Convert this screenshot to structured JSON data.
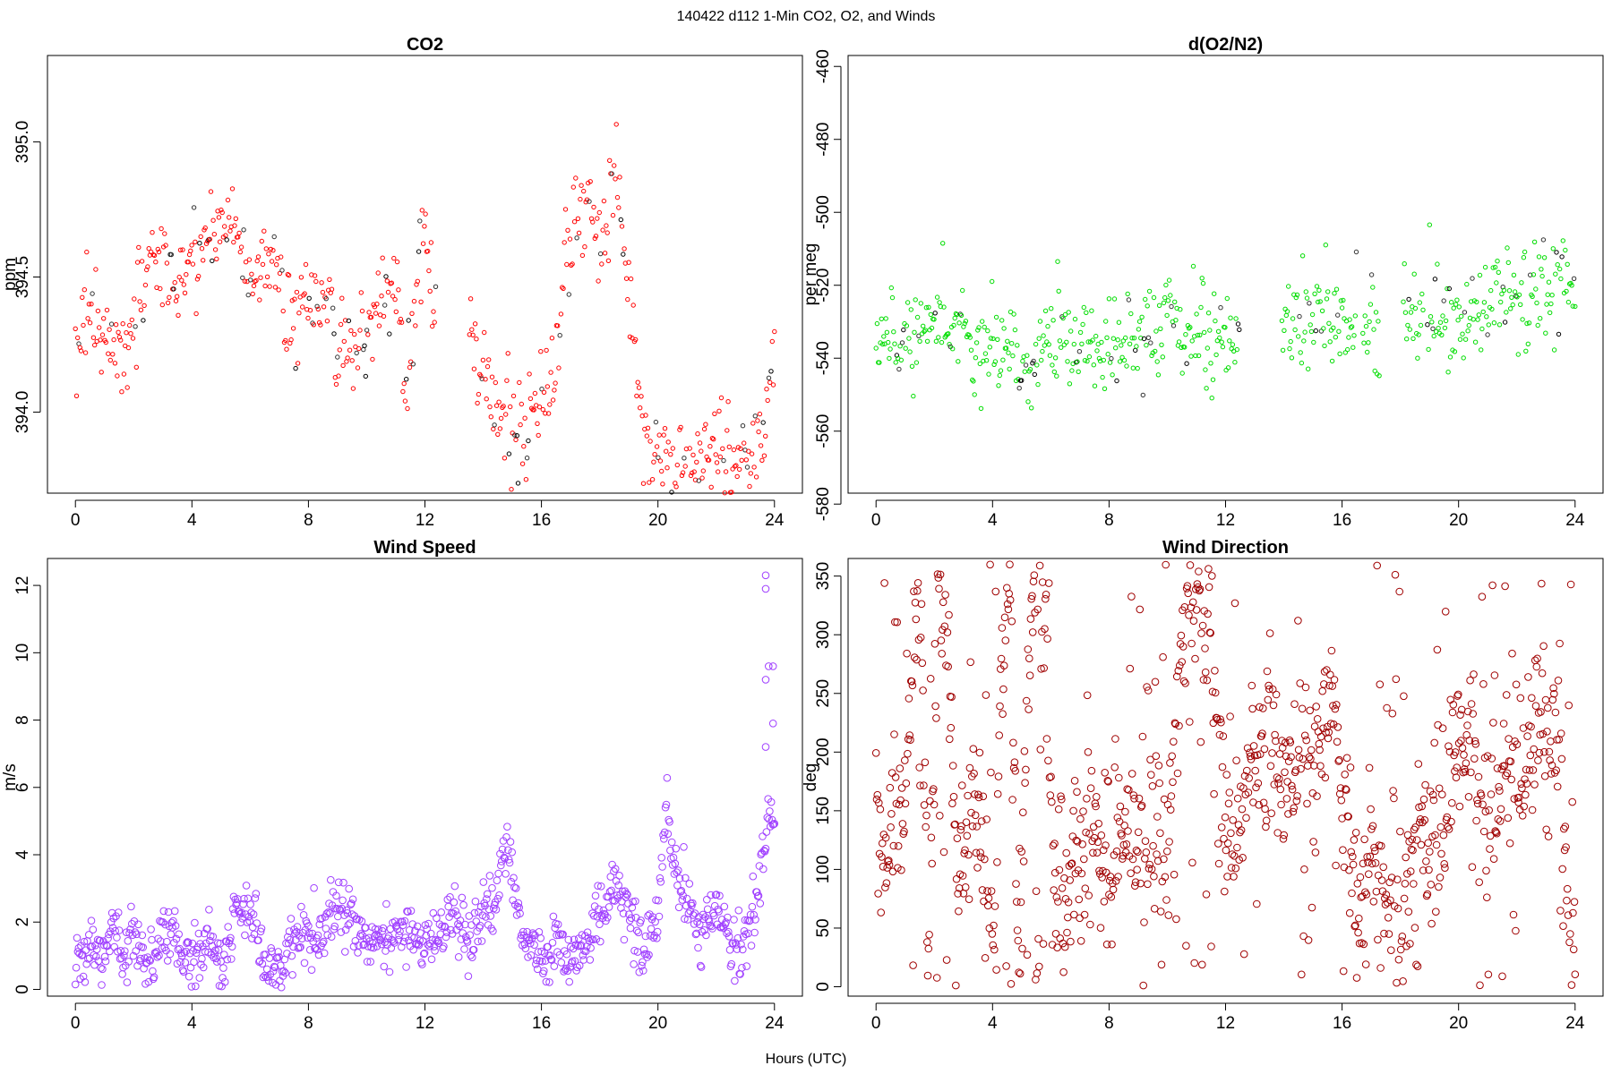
{
  "figure": {
    "title": "140422   d112   1-Min CO2, O2, and Winds",
    "xlabel": "Hours (UTC)"
  },
  "chart_data": [
    {
      "type": "scatter",
      "title": "CO2",
      "ylabel": "ppm",
      "color": "#ff0000",
      "marker_radius": 2.2,
      "xlim": [
        0,
        24
      ],
      "ylim": [
        393.7,
        395.32
      ],
      "xticks": [
        0,
        4,
        8,
        12,
        16,
        20,
        24
      ],
      "yticks": [
        394.0,
        394.5,
        395.0
      ],
      "ytick_labels": [
        "394.0",
        "394.5",
        "395.0"
      ],
      "anchors": [
        [
          0,
          394.28
        ],
        [
          0.5,
          394.38
        ],
        [
          1,
          394.3
        ],
        [
          1.4,
          394.22
        ],
        [
          1.8,
          394.22
        ],
        [
          2.2,
          394.45
        ],
        [
          2.5,
          394.55
        ],
        [
          3,
          394.55
        ],
        [
          3.5,
          394.48
        ],
        [
          4,
          394.55
        ],
        [
          4.5,
          394.6
        ],
        [
          5,
          394.7
        ],
        [
          5.5,
          394.7
        ],
        [
          6,
          394.5
        ],
        [
          6.5,
          394.55
        ],
        [
          7,
          394.5
        ],
        [
          7.4,
          394.35
        ],
        [
          8,
          394.45
        ],
        [
          8.5,
          394.4
        ],
        [
          9,
          394.3
        ],
        [
          9.5,
          394.2
        ],
        [
          10,
          394.3
        ],
        [
          10.5,
          394.4
        ],
        [
          11,
          394.45
        ],
        [
          11.3,
          394.1
        ],
        [
          11.6,
          394.3
        ],
        [
          12,
          394.7
        ],
        [
          12.3,
          394.4
        ],
        [
          13.6,
          394.25
        ],
        [
          14,
          394.15
        ],
        [
          14.5,
          394.0
        ],
        [
          15,
          393.9
        ],
        [
          15.4,
          393.95
        ],
        [
          16,
          394.1
        ],
        [
          16.4,
          394.05
        ],
        [
          16.8,
          394.6
        ],
        [
          17.2,
          394.7
        ],
        [
          17.6,
          394.8
        ],
        [
          18,
          394.6
        ],
        [
          18.5,
          394.9
        ],
        [
          18.8,
          394.7
        ],
        [
          19,
          394.4
        ],
        [
          19.5,
          393.95
        ],
        [
          20,
          393.85
        ],
        [
          20.5,
          393.78
        ],
        [
          21,
          393.8
        ],
        [
          21.5,
          393.82
        ],
        [
          22,
          393.85
        ],
        [
          22.5,
          393.8
        ],
        [
          23,
          393.85
        ],
        [
          23.6,
          393.9
        ],
        [
          24,
          394.25
        ]
      ],
      "gaps": [
        [
          12.4,
          13.5
        ]
      ],
      "noise": 0.09,
      "count": 620
    },
    {
      "type": "scatter",
      "title": "d(O2/N2)",
      "ylabel": "per meg",
      "color": "#00dd00",
      "marker_radius": 2.2,
      "xlim": [
        0,
        24
      ],
      "ylim": [
        -577,
        -457
      ],
      "xticks": [
        0,
        4,
        8,
        12,
        16,
        20,
        24
      ],
      "yticks": [
        -580,
        -560,
        -540,
        -520,
        -500,
        -480,
        -460
      ],
      "ytick_labels": [
        "-580",
        "-560",
        "-540",
        "-520",
        "-500",
        "-480",
        "-460"
      ],
      "anchors": [
        [
          0,
          -535
        ],
        [
          2,
          -530
        ],
        [
          4,
          -535
        ],
        [
          5,
          -540
        ],
        [
          6,
          -537
        ],
        [
          7.5,
          -535
        ],
        [
          9,
          -535
        ],
        [
          10,
          -528
        ],
        [
          11,
          -535
        ],
        [
          12,
          -535
        ],
        [
          14,
          -530
        ],
        [
          15,
          -528
        ],
        [
          16,
          -530
        ],
        [
          17,
          -532
        ],
        [
          18,
          -530
        ],
        [
          20,
          -528
        ],
        [
          22,
          -522
        ],
        [
          24,
          -520
        ]
      ],
      "gaps": [
        [
          12.5,
          13.9
        ],
        [
          16.5,
          16.7
        ],
        [
          17.3,
          18.1
        ],
        [
          18.8,
          18.9
        ]
      ],
      "noise": 7,
      "count": 640
    },
    {
      "type": "scatter",
      "title": "Wind Speed",
      "ylabel": "m/s",
      "color": "#a040ff",
      "marker_radius": 3.8,
      "xlim": [
        0,
        24
      ],
      "ylim": [
        -0.2,
        12.8
      ],
      "xticks": [
        0,
        4,
        8,
        12,
        16,
        20,
        24
      ],
      "yticks": [
        0,
        2,
        4,
        6,
        8,
        10,
        12
      ],
      "ytick_labels": [
        "0",
        "2",
        "4",
        "6",
        "8",
        "10",
        "12"
      ],
      "anchors": [
        [
          0,
          0.7
        ],
        [
          0.5,
          1.2
        ],
        [
          1,
          1.0
        ],
        [
          1.3,
          2.0
        ],
        [
          1.7,
          0.8
        ],
        [
          2,
          1.5
        ],
        [
          2.4,
          0.7
        ],
        [
          3,
          1.4
        ],
        [
          3.3,
          2.0
        ],
        [
          3.6,
          1.0
        ],
        [
          4,
          0.8
        ],
        [
          4.5,
          1.5
        ],
        [
          5,
          0.7
        ],
        [
          5.6,
          2.5
        ],
        [
          6,
          2.3
        ],
        [
          6.5,
          0.8
        ],
        [
          7,
          0.5
        ],
        [
          7.5,
          1.5
        ],
        [
          8,
          1.7
        ],
        [
          8.5,
          1.7
        ],
        [
          9,
          2.4
        ],
        [
          9.5,
          2.3
        ],
        [
          10,
          1.3
        ],
        [
          10.5,
          1.4
        ],
        [
          11,
          1.4
        ],
        [
          11.5,
          1.7
        ],
        [
          12,
          1.2
        ],
        [
          12.5,
          1.6
        ],
        [
          13,
          2.3
        ],
        [
          13.5,
          1.4
        ],
        [
          14,
          2.4
        ],
        [
          14.5,
          2.6
        ],
        [
          14.8,
          4.8
        ],
        [
          15.2,
          2.2
        ],
        [
          15.5,
          1.3
        ],
        [
          16,
          1.0
        ],
        [
          16.5,
          1.4
        ],
        [
          17,
          1.0
        ],
        [
          17.5,
          1.2
        ],
        [
          18,
          2.2
        ],
        [
          18.5,
          3.0
        ],
        [
          19,
          2.3
        ],
        [
          19.5,
          1.2
        ],
        [
          20,
          2.3
        ],
        [
          20.3,
          5.2
        ],
        [
          20.7,
          3.2
        ],
        [
          21,
          2.5
        ],
        [
          21.5,
          1.5
        ],
        [
          22,
          2.5
        ],
        [
          22.5,
          1.5
        ],
        [
          23,
          1.3
        ],
        [
          23.5,
          3.2
        ],
        [
          23.8,
          5.5
        ],
        [
          24,
          5.2
        ]
      ],
      "gaps": [],
      "noise": 0.45,
      "count": 880,
      "extra_points": [
        [
          23.7,
          12.3
        ],
        [
          23.7,
          11.9
        ],
        [
          23.8,
          9.6
        ],
        [
          23.95,
          9.6
        ],
        [
          23.7,
          9.2
        ],
        [
          23.95,
          7.9
        ],
        [
          23.7,
          7.2
        ]
      ]
    },
    {
      "type": "scatter",
      "title": "Wind Direction",
      "ylabel": "deg",
      "color": "#a00000",
      "marker_radius": 3.8,
      "xlim": [
        0,
        24
      ],
      "ylim": [
        -8,
        365
      ],
      "xticks": [
        0,
        4,
        8,
        12,
        16,
        20,
        24
      ],
      "yticks": [
        0,
        50,
        100,
        150,
        200,
        250,
        300,
        350
      ],
      "ytick_labels": [
        "0",
        "50",
        "100",
        "150",
        "200",
        "250",
        "300",
        "350"
      ],
      "anchors": [
        [
          0,
          120
        ],
        [
          0.5,
          110
        ],
        [
          1,
          160
        ],
        [
          1.3,
          320
        ],
        [
          1.5,
          340
        ],
        [
          1.8,
          30
        ],
        [
          2.1,
          320
        ],
        [
          2.4,
          330
        ],
        [
          2.8,
          90
        ],
        [
          3.2,
          130
        ],
        [
          3.5,
          160
        ],
        [
          3.8,
          80
        ],
        [
          4.1,
          20
        ],
        [
          4.3,
          310
        ],
        [
          4.6,
          340
        ],
        [
          4.9,
          10
        ],
        [
          5.3,
          320
        ],
        [
          5.8,
          320
        ],
        [
          6.2,
          40
        ],
        [
          6.5,
          70
        ],
        [
          7,
          130
        ],
        [
          7.5,
          140
        ],
        [
          8,
          110
        ],
        [
          8.5,
          130
        ],
        [
          9,
          125
        ],
        [
          9.5,
          140
        ],
        [
          10,
          120
        ],
        [
          10.5,
          300
        ],
        [
          11,
          320
        ],
        [
          11.5,
          300
        ],
        [
          12,
          120
        ],
        [
          12.5,
          150
        ],
        [
          13,
          200
        ],
        [
          13.5,
          250
        ],
        [
          14,
          150
        ],
        [
          14.5,
          200
        ],
        [
          15,
          215
        ],
        [
          15.5,
          240
        ],
        [
          16,
          190
        ],
        [
          16.5,
          80
        ],
        [
          17,
          120
        ],
        [
          17.5,
          60
        ],
        [
          18,
          50
        ],
        [
          18.5,
          120
        ],
        [
          19,
          120
        ],
        [
          19.5,
          150
        ],
        [
          20,
          200
        ],
        [
          20.5,
          200
        ],
        [
          21,
          130
        ],
        [
          21.5,
          180
        ],
        [
          22,
          180
        ],
        [
          22.5,
          200
        ],
        [
          23,
          220
        ],
        [
          23.5,
          210
        ],
        [
          23.8,
          40
        ],
        [
          24,
          30
        ]
      ],
      "gaps": [],
      "noise": 35,
      "count": 1000
    }
  ]
}
